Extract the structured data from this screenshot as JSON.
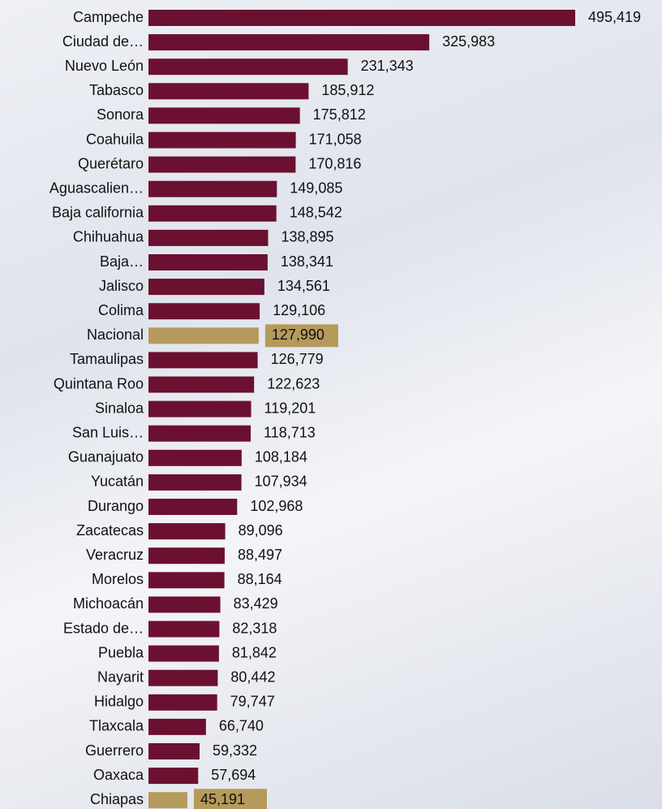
{
  "chart_data": {
    "type": "hbar",
    "categories": [
      "Campeche",
      "Ciudad de…",
      "Nuevo León",
      "Tabasco",
      "Sonora",
      "Coahuila",
      "Querétaro",
      "Aguascalien…",
      "Baja california",
      "Chihuahua",
      "Baja…",
      "Jalisco",
      "Colima",
      "Nacional",
      "Tamaulipas",
      "Quintana Roo",
      "Sinaloa",
      "San Luis…",
      "Guanajuato",
      "Yucatán",
      "Durango",
      "Zacatecas",
      "Veracruz",
      "Morelos",
      "Michoacán",
      "Estado de…",
      "Puebla",
      "Nayarit",
      "Hidalgo",
      "Tlaxcala",
      "Guerrero",
      "Oaxaca",
      "Chiapas"
    ],
    "values": [
      495419,
      325983,
      231343,
      185912,
      175812,
      171058,
      170816,
      149085,
      148542,
      138895,
      138341,
      134561,
      129106,
      127990,
      126779,
      122623,
      119201,
      118713,
      108184,
      107934,
      102968,
      89096,
      88497,
      88164,
      83429,
      82318,
      81842,
      80442,
      79747,
      66740,
      59332,
      57694,
      45191
    ],
    "value_labels": [
      "495,419",
      "325,983",
      "231,343",
      "185,912",
      "175,812",
      "171,058",
      "170,816",
      "149,085",
      "148,542",
      "138,895",
      "138,341",
      "134,561",
      "129,106",
      "127,990",
      "126,779",
      "122,623",
      "119,201",
      "118,713",
      "108,184",
      "107,934",
      "102,968",
      "89,096",
      "88,497",
      "88,164",
      "83,429",
      "82,318",
      "81,842",
      "80,442",
      "79,747",
      "66,740",
      "59,332",
      "57,694",
      "45,191"
    ],
    "colors": [
      "#6b1030",
      "#6b1030",
      "#6b1030",
      "#6b1030",
      "#6b1030",
      "#6b1030",
      "#6b1030",
      "#6b1030",
      "#6b1030",
      "#6b1030",
      "#6b1030",
      "#6b1030",
      "#6b1030",
      "#b59a5b",
      "#6b1030",
      "#6b1030",
      "#6b1030",
      "#6b1030",
      "#6b1030",
      "#6b1030",
      "#6b1030",
      "#6b1030",
      "#6b1030",
      "#6b1030",
      "#6b1030",
      "#6b1030",
      "#6b1030",
      "#6b1030",
      "#6b1030",
      "#6b1030",
      "#6b1030",
      "#6b1030",
      "#b59a5b"
    ],
    "highlight_color": "#b59a5b"
  }
}
